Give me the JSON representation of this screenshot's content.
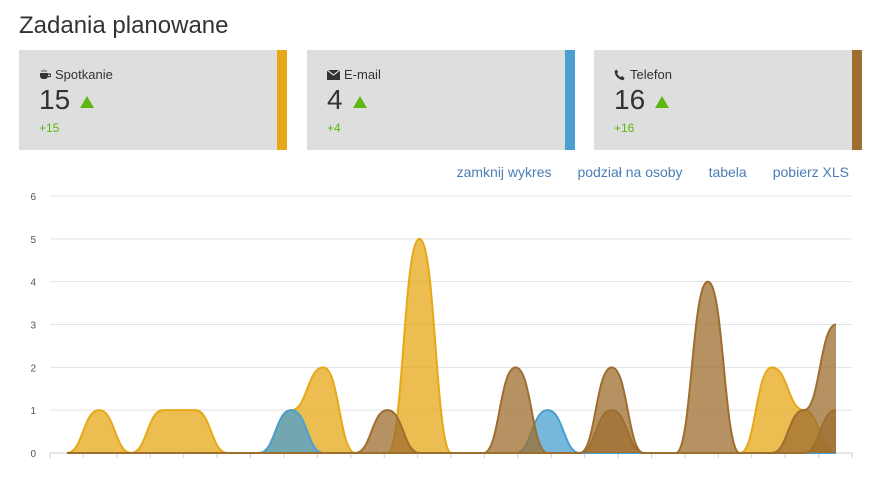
{
  "page": {
    "title": "Zadania planowane"
  },
  "cards": [
    {
      "label": "Spotkanie",
      "icon": "coffee-cup-icon",
      "count": "15",
      "delta": "+15",
      "color": "#e6a817"
    },
    {
      "label": "E-mail",
      "icon": "envelope-icon",
      "count": "4",
      "delta": "+4",
      "color": "#4a9fd0"
    },
    {
      "label": "Telefon",
      "icon": "phone-icon",
      "count": "16",
      "delta": "+16",
      "color": "#9e6e2f"
    }
  ],
  "actions": {
    "close_chart": "zamknij wykres",
    "split_by_person": "podział na osoby",
    "table": "tabela",
    "download_xls": "pobierz XLS"
  },
  "chart_data": {
    "type": "area",
    "x": [
      0,
      1,
      2,
      3,
      4,
      5,
      6,
      7,
      8,
      9,
      10,
      11,
      12,
      13,
      14,
      15,
      16,
      17,
      18,
      19,
      20,
      21,
      22,
      23,
      24
    ],
    "ylim": [
      0,
      6
    ],
    "yticks": [
      "0",
      "1",
      "2",
      "3",
      "4",
      "5",
      "6"
    ],
    "grid": true,
    "series": [
      {
        "key": "spotkanie",
        "color": "#e6a817",
        "values": [
          0,
          1,
          0,
          1,
          1,
          0,
          0,
          1,
          2,
          0,
          0,
          5,
          0,
          0,
          0,
          0,
          0,
          0,
          0,
          0,
          0,
          0,
          2,
          1,
          0
        ]
      },
      {
        "key": "email",
        "color": "#4a9fd0",
        "values": [
          0,
          0,
          0,
          0,
          0,
          0,
          0,
          1,
          0,
          0,
          0,
          0,
          0,
          0,
          0,
          1,
          0,
          0,
          0,
          0,
          0,
          0,
          0,
          0,
          0
        ]
      },
      {
        "key": "telefon",
        "color": "#9e6e2f",
        "values": [
          0,
          0,
          0,
          0,
          0,
          0,
          0,
          0,
          0,
          0,
          1,
          0,
          0,
          0,
          2,
          0,
          0,
          2,
          0,
          0,
          4,
          0,
          0,
          1,
          3
        ]
      },
      {
        "key": "telefon-2",
        "color": "#9e6e2f",
        "values": [
          0,
          0,
          0,
          0,
          0,
          0,
          0,
          0,
          0,
          0,
          0,
          0,
          0,
          0,
          0,
          0,
          0,
          1,
          0,
          0,
          0,
          0,
          0,
          0,
          1
        ]
      }
    ]
  }
}
